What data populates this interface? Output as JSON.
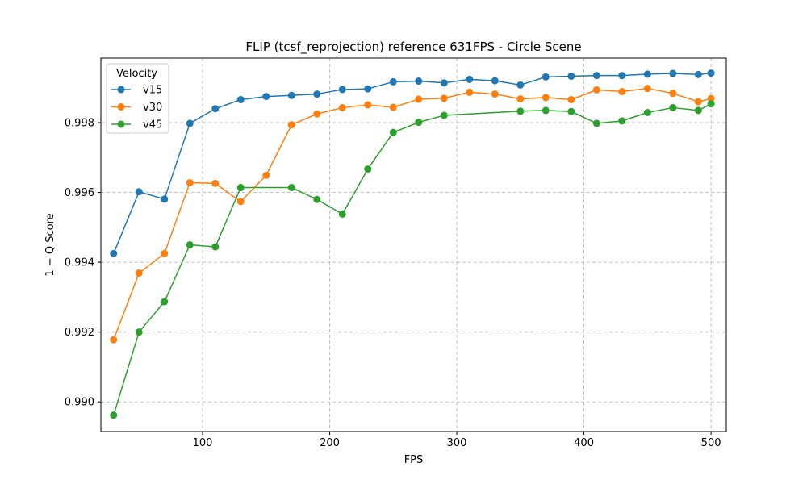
{
  "chart_data": {
    "type": "line",
    "title": "FLIP (tcsf_reprojection) reference 631FPS - Circle Scene",
    "xlabel": "FPS",
    "ylabel": "1 − Q Score",
    "xlim": [
      20,
      512
    ],
    "ylim": [
      0.98915,
      0.99985
    ],
    "xticks": [
      100,
      200,
      300,
      400,
      500
    ],
    "yticks": [
      0.99,
      0.992,
      0.994,
      0.996,
      0.998
    ],
    "ytick_labels": [
      "0.990",
      "0.992",
      "0.994",
      "0.996",
      "0.998"
    ],
    "grid": true,
    "legend": {
      "title": "Velocity",
      "position": "top-left"
    },
    "series": [
      {
        "name": "v15",
        "color": "#1f77b4",
        "x": [
          30,
          50,
          70,
          90,
          110,
          130,
          150,
          170,
          190,
          210,
          230,
          250,
          270,
          290,
          310,
          330,
          350,
          370,
          390,
          410,
          430,
          450,
          470,
          490,
          500
        ],
        "y": [
          0.99425,
          0.99602,
          0.99581,
          0.99798,
          0.9984,
          0.99866,
          0.99875,
          0.99878,
          0.99882,
          0.99895,
          0.99897,
          0.99917,
          0.99919,
          0.99914,
          0.99924,
          0.9992,
          0.99908,
          0.99931,
          0.99933,
          0.99935,
          0.99935,
          0.99939,
          0.99941,
          0.99938,
          0.99942
        ]
      },
      {
        "name": "v30",
        "color": "#ff7f0e",
        "x": [
          30,
          50,
          70,
          90,
          110,
          130,
          150,
          170,
          190,
          210,
          230,
          250,
          270,
          290,
          310,
          330,
          350,
          370,
          390,
          410,
          430,
          450,
          470,
          490,
          500
        ],
        "y": [
          0.99178,
          0.99369,
          0.99425,
          0.99628,
          0.99626,
          0.99574,
          0.99649,
          0.99794,
          0.99825,
          0.99843,
          0.99851,
          0.99844,
          0.99867,
          0.9987,
          0.99887,
          0.99882,
          0.99868,
          0.99872,
          0.99866,
          0.99894,
          0.99889,
          0.99898,
          0.99884,
          0.9986,
          0.99869
        ]
      },
      {
        "name": "v45",
        "color": "#2ca02c",
        "x": [
          30,
          50,
          70,
          90,
          110,
          130,
          170,
          190,
          210,
          230,
          250,
          270,
          290,
          350,
          370,
          390,
          410,
          430,
          450,
          470,
          490,
          500
        ],
        "y": [
          0.98962,
          0.992,
          0.99287,
          0.9945,
          0.99444,
          0.99614,
          0.99614,
          0.9958,
          0.99538,
          0.99667,
          0.99772,
          0.99801,
          0.99821,
          0.99833,
          0.99835,
          0.99832,
          0.99798,
          0.99805,
          0.99829,
          0.99843,
          0.99835,
          0.99854
        ]
      }
    ]
  }
}
